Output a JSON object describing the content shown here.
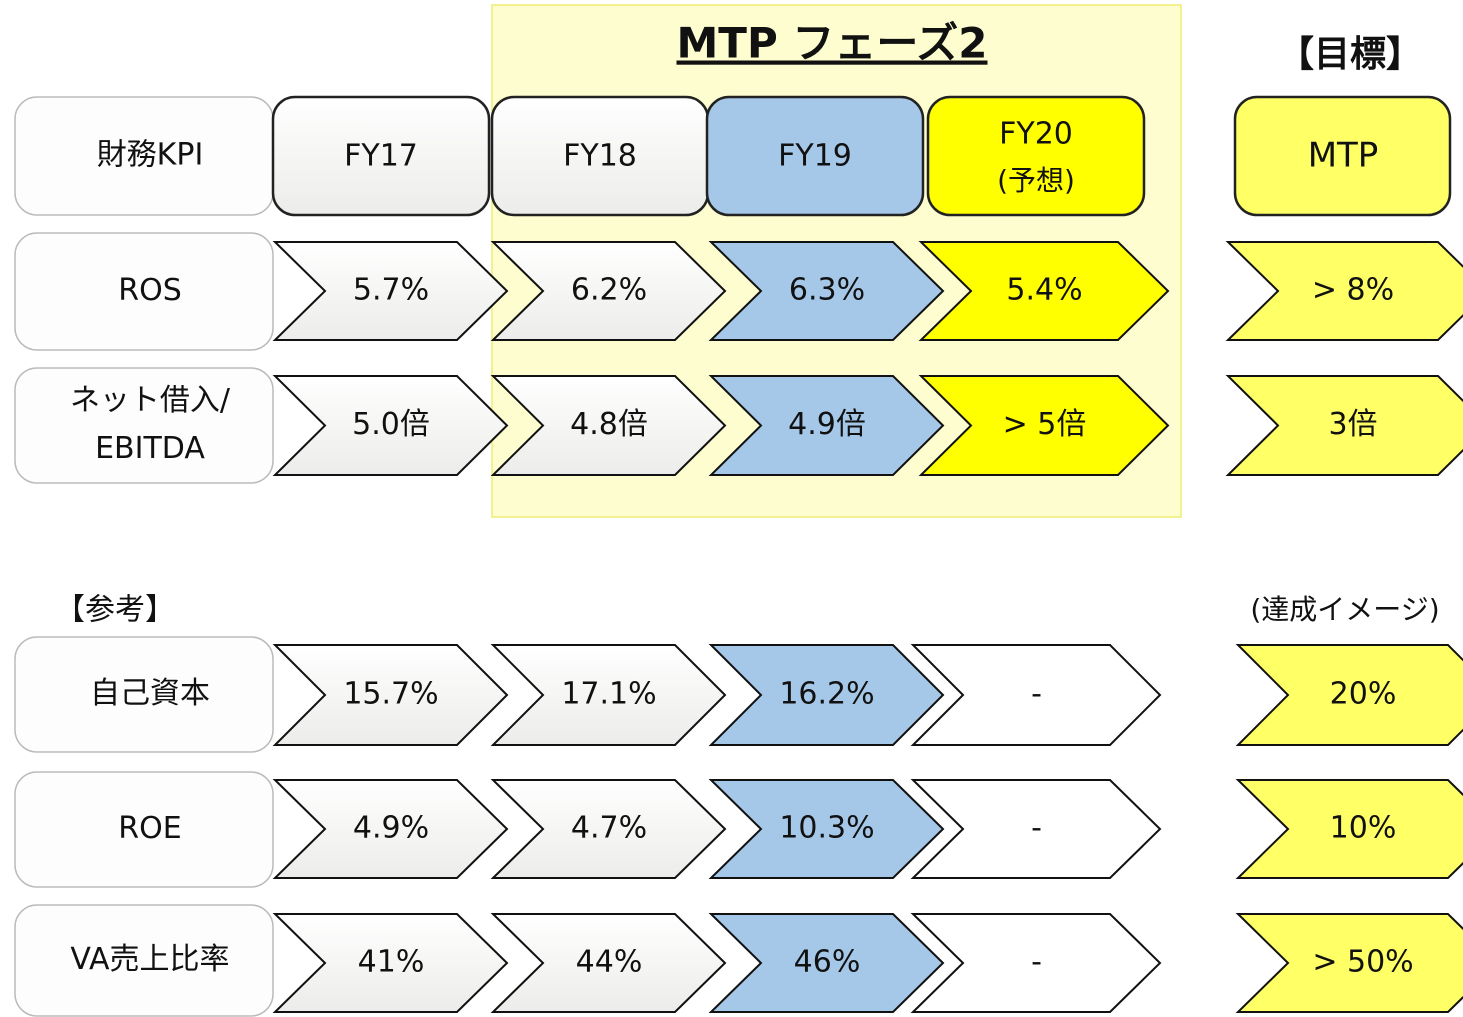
{
  "phase_title": "MTP フェーズ2",
  "target_title": "【目標】",
  "header": {
    "label": [
      "財務KPI"
    ],
    "columns": [
      "FY17",
      "FY18",
      "FY19",
      "FY20"
    ],
    "column_note": "(予想)",
    "target": "MTP"
  },
  "kpi_rows": [
    {
      "label": [
        "ROS"
      ],
      "values": [
        "5.7%",
        "6.2%",
        "6.3%",
        "5.4%"
      ],
      "target": "> 8%"
    },
    {
      "label": [
        "ネット借入/",
        "EBITDA"
      ],
      "values": [
        "5.0倍",
        "4.8倍",
        "4.9倍",
        "> 5倍"
      ],
      "target": "3倍"
    }
  ],
  "reference_title": "【参考】",
  "reference_note": "(達成イメージ)",
  "reference_rows": [
    {
      "label": [
        "自己資本"
      ],
      "values": [
        "15.7%",
        "17.1%",
        "16.2%",
        "-"
      ],
      "target": "20%"
    },
    {
      "label": [
        "ROE"
      ],
      "values": [
        "4.9%",
        "4.7%",
        "10.3%",
        "-"
      ],
      "target": "10%"
    },
    {
      "label": [
        "VA売上比率"
      ],
      "values": [
        "41%",
        "44%",
        "46%",
        "-"
      ],
      "target": "> 50%"
    }
  ]
}
